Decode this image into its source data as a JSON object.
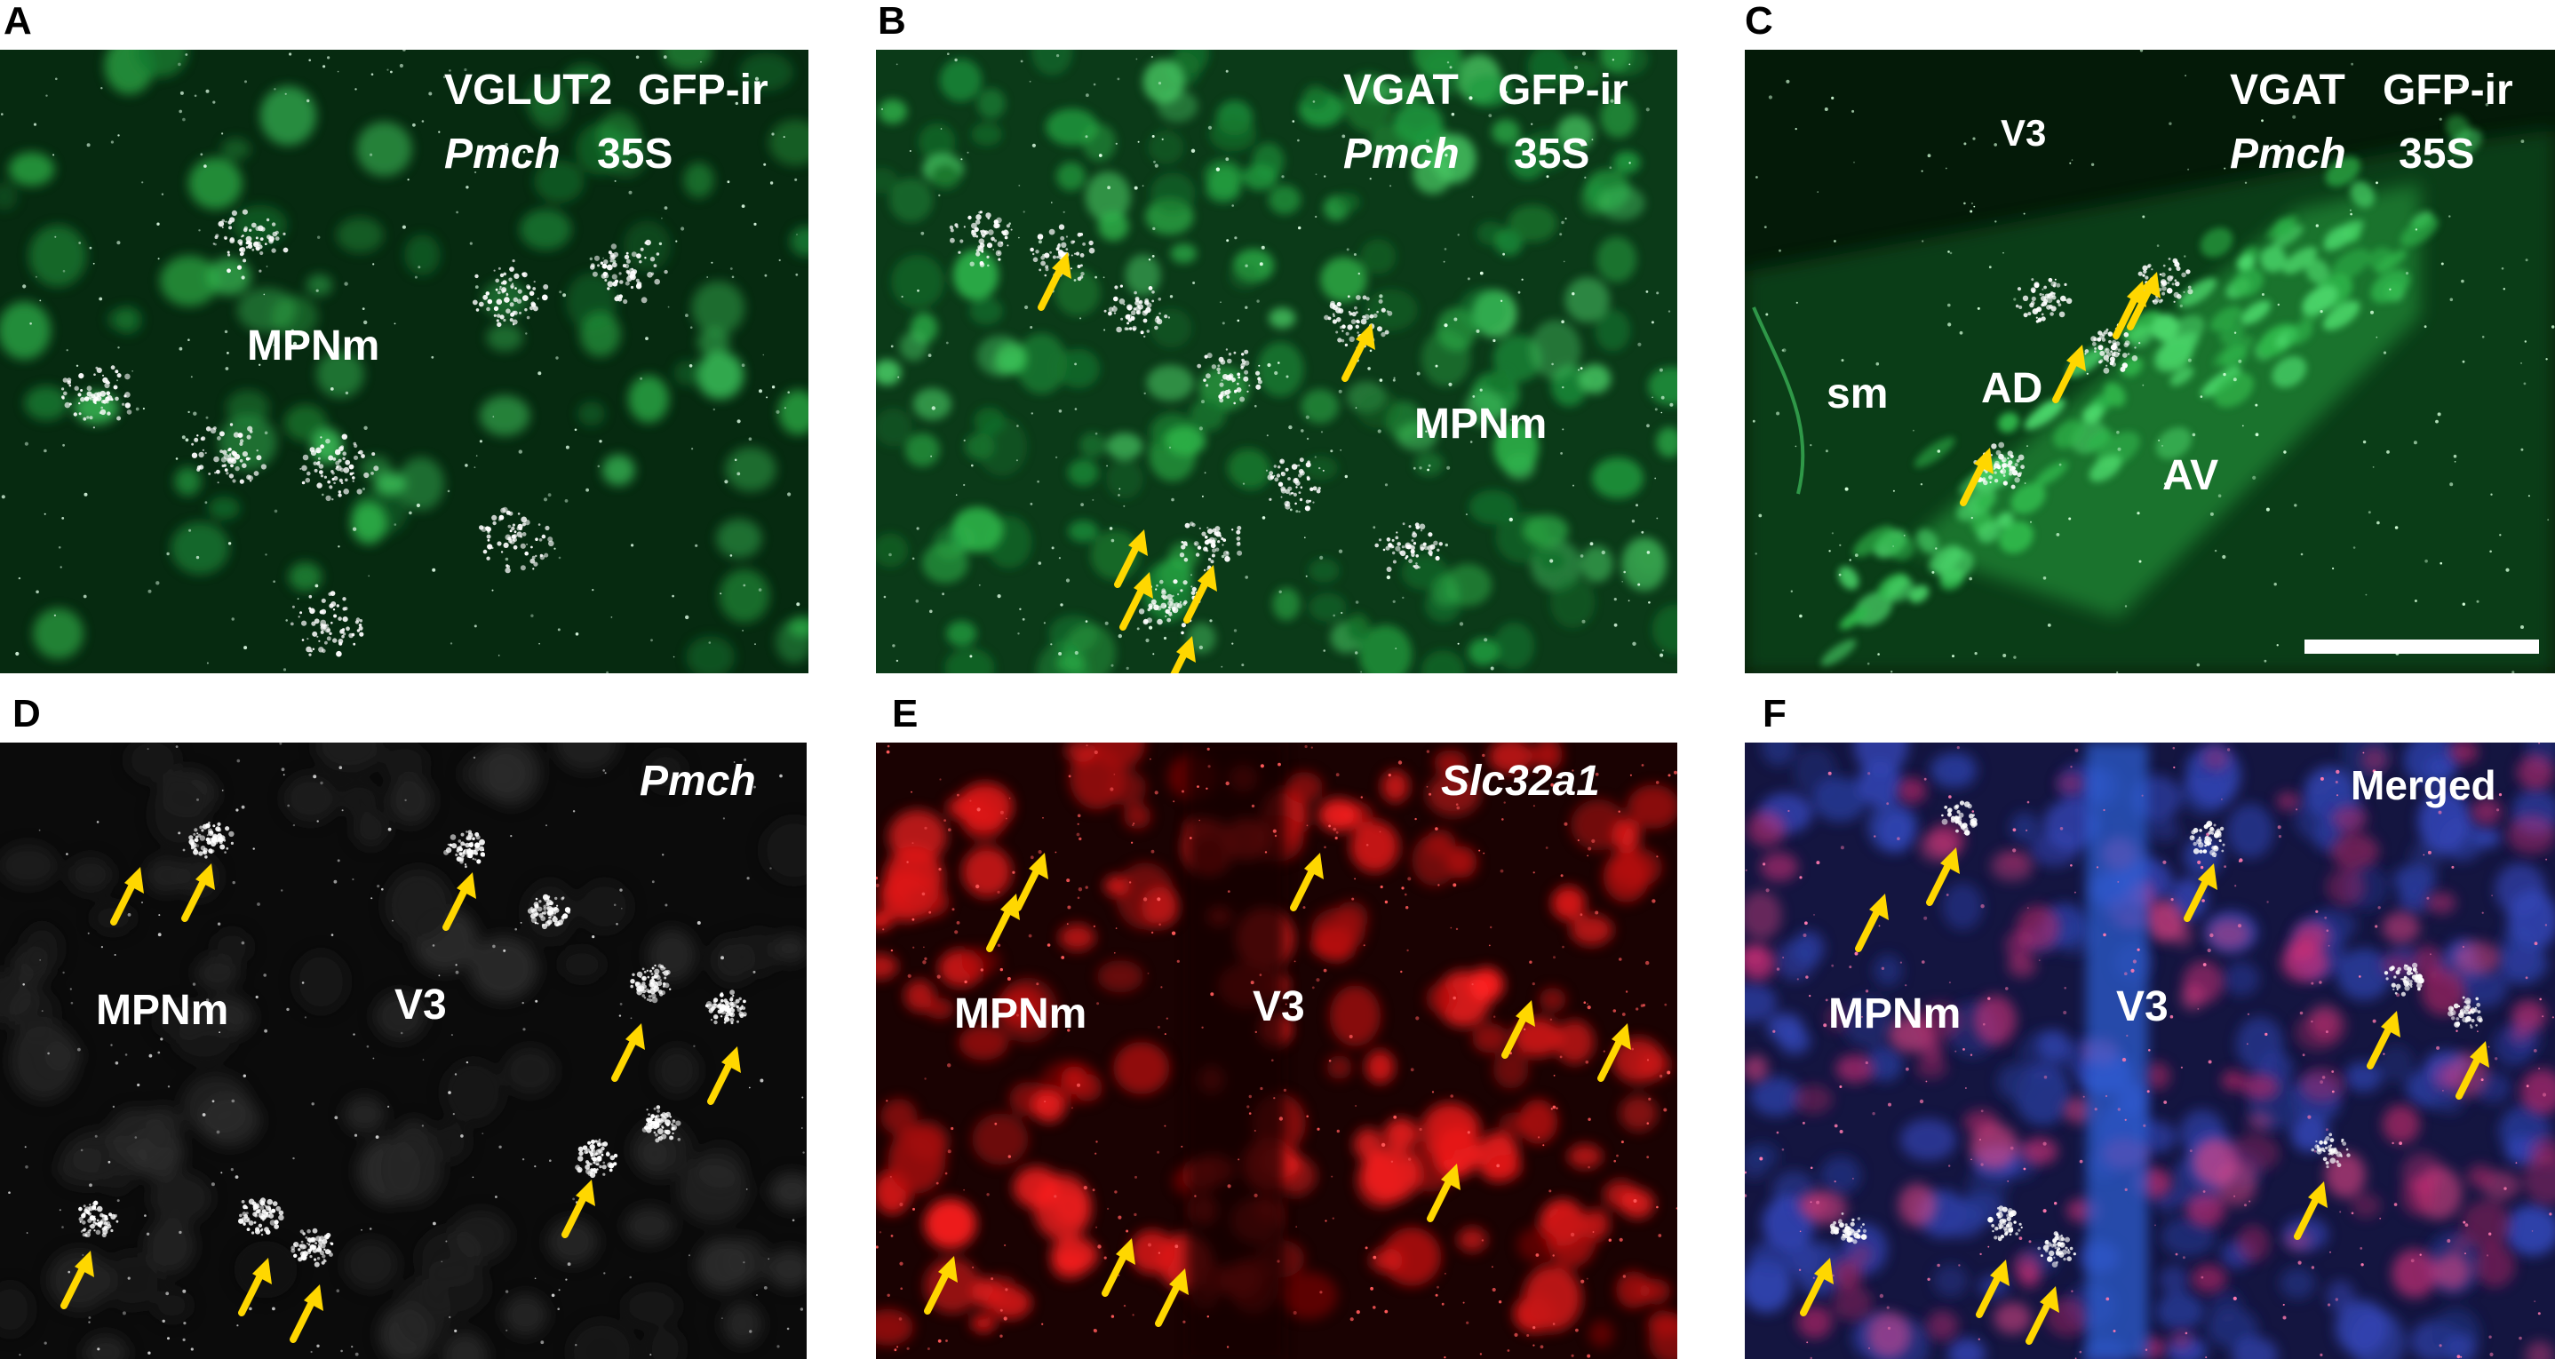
{
  "colors": {
    "arrow": "#ffd700",
    "gfp_green": "#2fb54a",
    "insitu_red": "#ff2020",
    "dapi_blue": "#2a3c9e",
    "magenta": "#d6307a",
    "white": "#ffffff"
  },
  "panels": [
    {
      "id": "A",
      "letter": "A",
      "stain": "green",
      "labels": [
        {
          "text": "VGLUT2",
          "italic": false
        },
        {
          "text": "GFP-ir",
          "italic": false
        },
        {
          "text": "Pmch",
          "italic": true
        },
        {
          "text": "35S",
          "italic": false
        },
        {
          "text": "MPNm",
          "italic": false
        }
      ],
      "arrows": 0
    },
    {
      "id": "B",
      "letter": "B",
      "stain": "green",
      "labels": [
        {
          "text": "VGAT",
          "italic": false
        },
        {
          "text": "GFP-ir",
          "italic": false
        },
        {
          "text": "Pmch",
          "italic": true
        },
        {
          "text": "35S",
          "italic": false
        },
        {
          "text": "MPNm",
          "italic": false
        }
      ],
      "arrows": 6
    },
    {
      "id": "C",
      "letter": "C",
      "stain": "green-dark",
      "labels": [
        {
          "text": "VGAT",
          "italic": false
        },
        {
          "text": "GFP-ir",
          "italic": false
        },
        {
          "text": "Pmch",
          "italic": true
        },
        {
          "text": "35S",
          "italic": false
        },
        {
          "text": "V3",
          "italic": false
        },
        {
          "text": "sm",
          "italic": false
        },
        {
          "text": "AD",
          "italic": false
        },
        {
          "text": "AV",
          "italic": false
        }
      ],
      "arrows": 4,
      "scale_bar": true
    },
    {
      "id": "D",
      "letter": "D",
      "stain": "gray",
      "labels": [
        {
          "text": "Pmch",
          "italic": true
        },
        {
          "text": "MPNm",
          "italic": false
        },
        {
          "text": "V3",
          "italic": false
        }
      ],
      "arrows": 9
    },
    {
      "id": "E",
      "letter": "E",
      "stain": "red",
      "labels": [
        {
          "text": "Slc32a1",
          "italic": true
        },
        {
          "text": "MPNm",
          "italic": false
        },
        {
          "text": "V3",
          "italic": false
        }
      ],
      "arrows": 9
    },
    {
      "id": "F",
      "letter": "F",
      "stain": "merged",
      "labels": [
        {
          "text": "Merged",
          "italic": false
        },
        {
          "text": "MPNm",
          "italic": false
        },
        {
          "text": "V3",
          "italic": false
        }
      ],
      "arrows": 9
    }
  ]
}
